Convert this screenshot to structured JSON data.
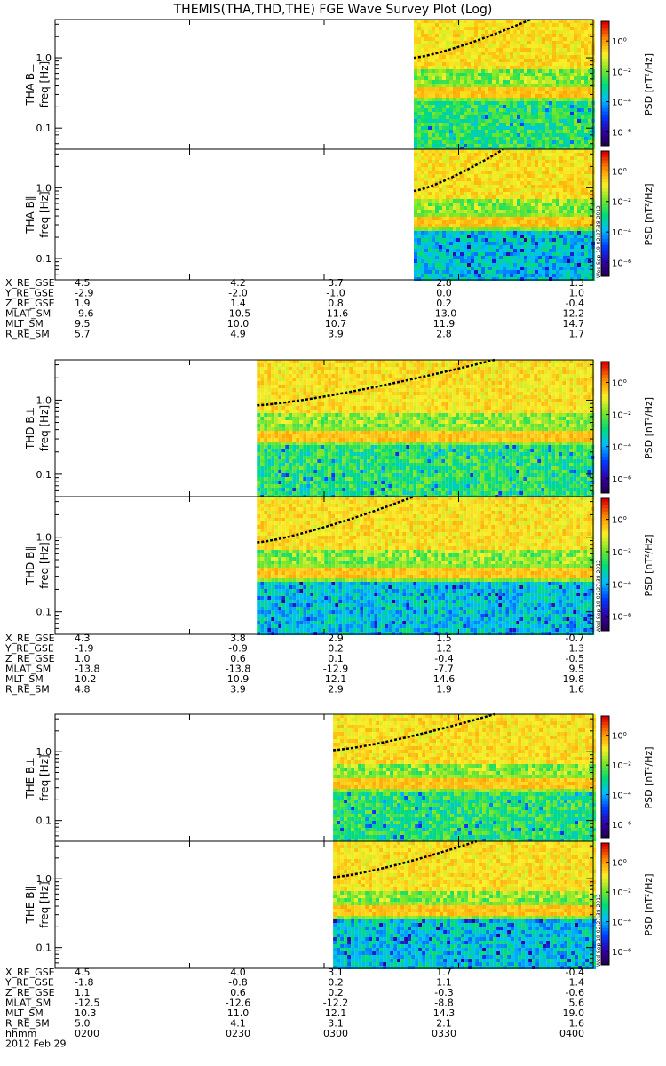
{
  "title": "THEMIS(THA,THD,THE) FGE Wave Survey Plot (Log)",
  "colorbar": {
    "label": "PSD [nT²/Hz]",
    "ticks": [
      "10⁰",
      "10⁻²",
      "10⁻⁴",
      "10⁻⁶"
    ],
    "tick_exponents": [
      0,
      -2,
      -4,
      -6
    ]
  },
  "stamp": "Wed Sep 19 02:27:38 2012",
  "ephemeris_blocks": [
    {
      "rows": [
        {
          "label": "X_RE_GSE",
          "values": [
            "4.5",
            "4.2",
            "3.7",
            "2.8",
            "1.3"
          ]
        },
        {
          "label": "Y_RE_GSE",
          "values": [
            "-2.9",
            "-2.0",
            "-1.0",
            "0.0",
            "1.0"
          ]
        },
        {
          "label": "Z_RE_GSE",
          "values": [
            "1.9",
            "1.4",
            "0.8",
            "0.2",
            "-0.4"
          ]
        },
        {
          "label": "MLAT_SM",
          "values": [
            "-9.6",
            "-10.5",
            "-11.6",
            "-13.0",
            "-12.2"
          ]
        },
        {
          "label": "MLT_SM",
          "values": [
            "9.5",
            "10.0",
            "10.7",
            "11.9",
            "14.7"
          ]
        },
        {
          "label": "R_RE_SM",
          "values": [
            "5.7",
            "4.9",
            "3.9",
            "2.8",
            "1.7"
          ]
        }
      ]
    },
    {
      "rows": [
        {
          "label": "X_RE_GSE",
          "values": [
            "4.3",
            "3.8",
            "2.9",
            "1.5",
            "-0.7"
          ]
        },
        {
          "label": "Y_RE_GSE",
          "values": [
            "-1.9",
            "-0.9",
            "0.2",
            "1.2",
            "1.3"
          ]
        },
        {
          "label": "Z_RE_GSE",
          "values": [
            "1.0",
            "0.6",
            "0.1",
            "-0.4",
            "-0.5"
          ]
        },
        {
          "label": "MLAT_SM",
          "values": [
            "-13.8",
            "-13.8",
            "-12.9",
            "-7.7",
            "9.5"
          ]
        },
        {
          "label": "MLT_SM",
          "values": [
            "10.2",
            "10.9",
            "12.1",
            "14.6",
            "19.8"
          ]
        },
        {
          "label": "R_RE_SM",
          "values": [
            "4.8",
            "3.9",
            "2.9",
            "1.9",
            "1.6"
          ]
        }
      ]
    },
    {
      "rows": [
        {
          "label": "X_RE_GSE",
          "values": [
            "4.5",
            "4.0",
            "3.1",
            "1.7",
            "-0.4"
          ]
        },
        {
          "label": "Y_RE_GSE",
          "values": [
            "-1.8",
            "-0.8",
            "0.2",
            "1.1",
            "1.4"
          ]
        },
        {
          "label": "Z_RE_GSE",
          "values": [
            "1.1",
            "0.6",
            "0.2",
            "-0.3",
            "-0.6"
          ]
        },
        {
          "label": "MLAT_SM",
          "values": [
            "-12.5",
            "-12.6",
            "-12.2",
            "-8.8",
            "5.6"
          ]
        },
        {
          "label": "MLT_SM",
          "values": [
            "10.3",
            "11.0",
            "12.1",
            "14.3",
            "19.0"
          ]
        },
        {
          "label": "R_RE_SM",
          "values": [
            "5.0",
            "4.1",
            "3.1",
            "2.1",
            "1.6"
          ]
        }
      ]
    }
  ],
  "time_axis": {
    "label": "hhmm",
    "date": "2012 Feb 29",
    "ticks": [
      "0200",
      "0230",
      "0300",
      "0330",
      "0400"
    ]
  },
  "chart_data": [
    {
      "type": "heatmap",
      "probe": "THA",
      "panel_label": "THA B⊥",
      "ylabel": "freq [Hz]",
      "x_range": [
        "0200",
        "0400"
      ],
      "ylim": [
        0.05,
        3.5
      ],
      "y_scale": "log",
      "y_ticks": [
        0.1,
        1.0
      ],
      "y_tick_labels": [
        "0.1",
        "1.0"
      ],
      "data_start": "0320",
      "band_hz": 0.33,
      "cyclotron_curve": {
        "start": "0320",
        "start_hz": 1.0,
        "end_hz": 3.5,
        "end": "0346"
      }
    },
    {
      "type": "heatmap",
      "probe": "THA",
      "panel_label": "THA B∥",
      "ylabel": "freq [Hz]",
      "x_range": [
        "0200",
        "0400"
      ],
      "ylim": [
        0.05,
        3.5
      ],
      "y_scale": "log",
      "y_ticks": [
        0.1,
        1.0
      ],
      "y_tick_labels": [
        "0.1",
        "1.0"
      ],
      "data_start": "0320",
      "band_hz": 0.33,
      "cyclotron_curve": {
        "start": "0320",
        "start_hz": 0.9,
        "end_hz": 3.5,
        "end": "0340"
      }
    },
    {
      "type": "heatmap",
      "probe": "THD",
      "panel_label": "THD B⊥",
      "ylabel": "freq [Hz]",
      "x_range": [
        "0200",
        "0400"
      ],
      "ylim": [
        0.05,
        3.5
      ],
      "y_scale": "log",
      "y_ticks": [
        0.1,
        1.0
      ],
      "y_tick_labels": [
        "0.1",
        "1.0"
      ],
      "data_start": "0245",
      "band_hz": 0.33,
      "cyclotron_curve": {
        "start": "0245",
        "start_hz": 0.85,
        "end_hz": 3.5,
        "end": "0338"
      }
    },
    {
      "type": "heatmap",
      "probe": "THD",
      "panel_label": "THD B∥",
      "ylabel": "freq [Hz]",
      "x_range": [
        "0200",
        "0400"
      ],
      "ylim": [
        0.05,
        3.5
      ],
      "y_scale": "log",
      "y_ticks": [
        0.1,
        1.0
      ],
      "y_tick_labels": [
        "0.1",
        "1.0"
      ],
      "data_start": "0245",
      "band_hz": 0.33,
      "cyclotron_curve": {
        "start": "0245",
        "start_hz": 0.85,
        "end_hz": 3.5,
        "end": "0320"
      }
    },
    {
      "type": "heatmap",
      "probe": "THE",
      "panel_label": "THE B⊥",
      "ylabel": "freq [Hz]",
      "x_range": [
        "0200",
        "0400"
      ],
      "ylim": [
        0.05,
        3.5
      ],
      "y_scale": "log",
      "y_ticks": [
        0.1,
        1.0
      ],
      "y_tick_labels": [
        "0.1",
        "1.0"
      ],
      "data_start": "0302",
      "band_hz": 0.33,
      "cyclotron_curve": {
        "start": "0302",
        "start_hz": 1.05,
        "end_hz": 3.5,
        "end": "0338"
      }
    },
    {
      "type": "heatmap",
      "probe": "THE",
      "panel_label": "THE B∥",
      "ylabel": "freq [Hz]",
      "x_range": [
        "0200",
        "0400"
      ],
      "ylim": [
        0.05,
        3.5
      ],
      "y_scale": "log",
      "y_ticks": [
        0.1,
        1.0
      ],
      "y_tick_labels": [
        "0.1",
        "1.0"
      ],
      "data_start": "0302",
      "band_hz": 0.33,
      "cyclotron_curve": {
        "start": "0302",
        "start_hz": 1.05,
        "end_hz": 3.5,
        "end": "0334"
      }
    }
  ]
}
